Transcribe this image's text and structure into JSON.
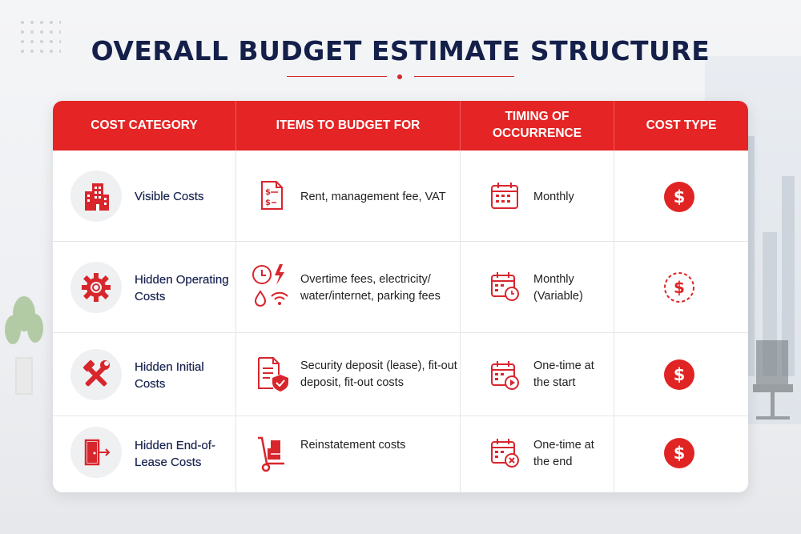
{
  "title": "OVERALL BUDGET ESTIMATE STRUCTURE",
  "colors": {
    "accent": "#e52525",
    "title": "#15204a"
  },
  "headers": [
    "COST CATEGORY",
    "ITEMS TO BUDGET FOR",
    "TIMING OF\nOCCURRENCE",
    "COST TYPE"
  ],
  "rows": [
    {
      "category": "Visible Costs",
      "category_icon": "building-icon",
      "items": "Rent, management fee, VAT",
      "items_icon": "invoice-icon",
      "timing": "Monthly",
      "timing_icon": "calendar-icon",
      "cost_type_icon": "dollar-solid-icon"
    },
    {
      "category": "Hidden Operating Costs",
      "category_icon": "gear-icon",
      "items": "Overtime fees, electricity/ water/internet, parking fees",
      "items_icon": "utilities-icon",
      "timing": "Monthly (Variable)",
      "timing_icon": "calendar-clock-icon",
      "cost_type_icon": "dollar-dashed-icon"
    },
    {
      "category": "Hidden Initial Costs",
      "category_icon": "tools-icon",
      "items": "Security deposit (lease), fit-out deposit, fit-out costs",
      "items_icon": "shield-document-icon",
      "timing": "One-time at the start",
      "timing_icon": "calendar-play-icon",
      "cost_type_icon": "dollar-solid-icon"
    },
    {
      "category": "Hidden End-of- Lease Costs",
      "category_icon": "exit-door-icon",
      "items": "Reinstatement costs",
      "items_icon": "hand-truck-icon",
      "timing": "One-time at the end",
      "timing_icon": "calendar-x-icon",
      "cost_type_icon": "dollar-solid-icon"
    }
  ]
}
